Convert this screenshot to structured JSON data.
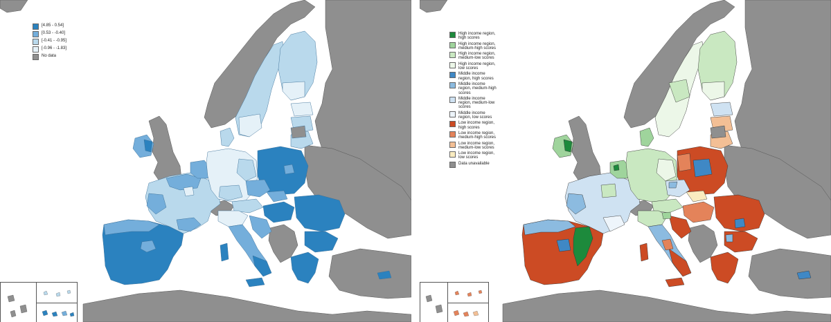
{
  "left_map": {
    "colors": {
      "land": "#8f8f8f",
      "sea": "#ffffff",
      "c1": "#2b82bf",
      "c2": "#74aedb",
      "c3": "#b9d9ec",
      "c4": "#e5f1f8",
      "nodata": "#8f8f8f"
    },
    "legend": [
      {
        "label": "[4.85 - 0.54]",
        "color": "#2b82bf"
      },
      {
        "label": "[0.53 - -0.40]",
        "color": "#74aedb"
      },
      {
        "label": "[-0.41 - -0.95]",
        "color": "#b9d9ec"
      },
      {
        "label": "[-0.96 - -1.83]",
        "color": "#e5f1f8"
      },
      {
        "label": "No data",
        "color": "#8f8f8f"
      }
    ]
  },
  "right_map": {
    "colors": {
      "land": "#8f8f8f",
      "sea": "#ffffff",
      "hi_high": "#1d8a3c",
      "hi_mh": "#9fd49c",
      "hi_ml": "#c9e8c1",
      "hi_low": "#ecf7e8",
      "mid_high": "#3f88c5",
      "mid_mh": "#8cbbe0",
      "mid_ml": "#cfe2f2",
      "mid_low": "#eef5fb",
      "low_high": "#cc4b24",
      "low_mh": "#e4835a",
      "low_ml": "#f3bf95",
      "low_low": "#faecc0",
      "unavail": "#8f8f8f"
    },
    "legend": [
      {
        "label": "High income region,\nhigh scores",
        "color": "#1d8a3c"
      },
      {
        "label": "High income region,\nmedium-high scores",
        "color": "#9fd49c"
      },
      {
        "label": "High income region,\nmedium-low scores",
        "color": "#c9e8c1"
      },
      {
        "label": "High income region,\nlow scores",
        "color": "#ecf7e8"
      },
      {
        "label": "Middle income\nregion, high scores",
        "color": "#3f88c5"
      },
      {
        "label": "Middle income\nregion, medium-high\nscores",
        "color": "#8cbbe0"
      },
      {
        "label": "Middle income\nregion, medium-low\nscores",
        "color": "#cfe2f2"
      },
      {
        "label": "Middle income\nregion, low scores",
        "color": "#eef5fb"
      },
      {
        "label": "Low income region,\nhigh scores",
        "color": "#cc4b24"
      },
      {
        "label": "Low income region,\nmedium-high scores",
        "color": "#e4835a"
      },
      {
        "label": "Low income region,\nmedium-low scores",
        "color": "#f3bf95"
      },
      {
        "label": "Low income region,\nlow scores",
        "color": "#faecc0"
      },
      {
        "label": "Data unavailable",
        "color": "#8f8f8f"
      }
    ]
  }
}
